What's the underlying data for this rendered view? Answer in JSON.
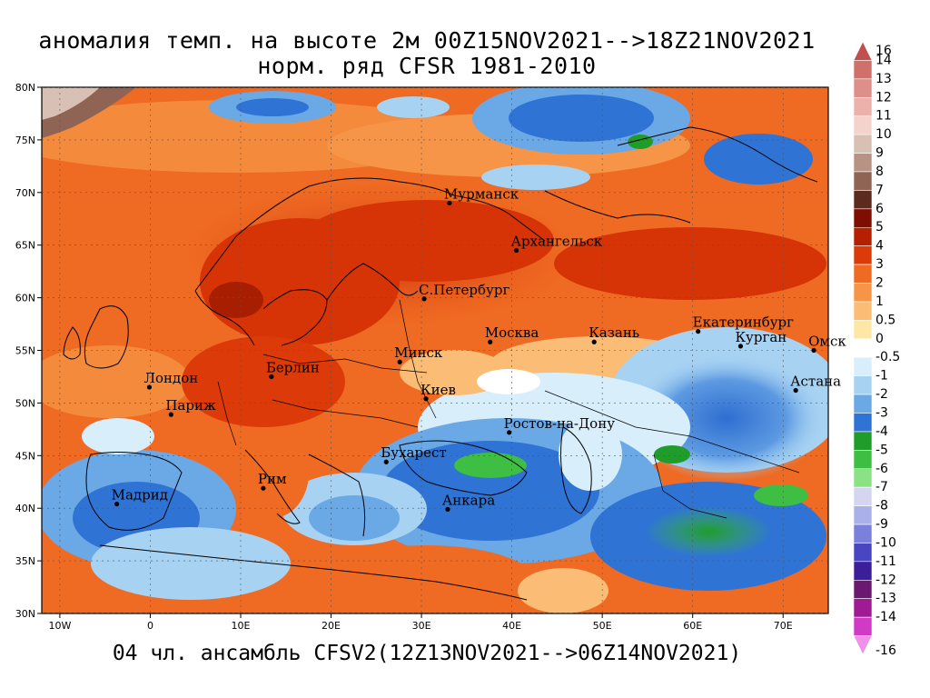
{
  "title_line1": "аномалия темп. на высоте 2м 00Z15NOV2021-->18Z21NOV2021",
  "title_line2": "норм. ряд CFSR 1981-2010",
  "footer": "04 чл. ансамбль CFSV2(12Z13NOV2021-->06Z14NOV2021)",
  "map": {
    "lon_range": [
      -12,
      75
    ],
    "lat_range": [
      30,
      80
    ],
    "lon_ticks": [
      {
        "value": -10,
        "label": "10W"
      },
      {
        "value": 0,
        "label": "0"
      },
      {
        "value": 10,
        "label": "10E"
      },
      {
        "value": 20,
        "label": "20E"
      },
      {
        "value": 30,
        "label": "30E"
      },
      {
        "value": 40,
        "label": "40E"
      },
      {
        "value": 50,
        "label": "50E"
      },
      {
        "value": 60,
        "label": "60E"
      },
      {
        "value": 70,
        "label": "70E"
      }
    ],
    "lat_ticks": [
      {
        "value": 30,
        "label": "30N"
      },
      {
        "value": 35,
        "label": "35N"
      },
      {
        "value": 40,
        "label": "40N"
      },
      {
        "value": 45,
        "label": "45N"
      },
      {
        "value": 50,
        "label": "50N"
      },
      {
        "value": 55,
        "label": "55N"
      },
      {
        "value": 60,
        "label": "60N"
      },
      {
        "value": 65,
        "label": "65N"
      },
      {
        "value": 70,
        "label": "70N"
      },
      {
        "value": 75,
        "label": "75N"
      },
      {
        "value": 80,
        "label": "80N"
      }
    ],
    "cities": [
      {
        "name": "Мурманск",
        "lon": 33.1,
        "lat": 69.0
      },
      {
        "name": "Архангельск",
        "lon": 40.5,
        "lat": 64.5
      },
      {
        "name": "С.Петербург",
        "lon": 30.3,
        "lat": 59.9
      },
      {
        "name": "Москва",
        "lon": 37.6,
        "lat": 55.8
      },
      {
        "name": "Казань",
        "lon": 49.1,
        "lat": 55.8
      },
      {
        "name": "Екатеринбург",
        "lon": 60.6,
        "lat": 56.8
      },
      {
        "name": "Курган",
        "lon": 65.3,
        "lat": 55.4
      },
      {
        "name": "Омск",
        "lon": 73.4,
        "lat": 55.0
      },
      {
        "name": "Минск",
        "lon": 27.6,
        "lat": 53.9
      },
      {
        "name": "Берлин",
        "lon": 13.4,
        "lat": 52.5
      },
      {
        "name": "Лондон",
        "lon": -0.1,
        "lat": 51.5
      },
      {
        "name": "Париж",
        "lon": 2.3,
        "lat": 48.9
      },
      {
        "name": "Киев",
        "lon": 30.5,
        "lat": 50.4
      },
      {
        "name": "Астана",
        "lon": 71.4,
        "lat": 51.2
      },
      {
        "name": "Ростов-на-Дону",
        "lon": 39.7,
        "lat": 47.2
      },
      {
        "name": "Бухарест",
        "lon": 26.1,
        "lat": 44.4
      },
      {
        "name": "Рим",
        "lon": 12.5,
        "lat": 41.9
      },
      {
        "name": "Мадрид",
        "lon": -3.7,
        "lat": 40.4
      },
      {
        "name": "Анкара",
        "lon": 32.9,
        "lat": 39.9
      }
    ]
  },
  "legend": {
    "items": [
      {
        "label": "16",
        "color": "#c0504d"
      },
      {
        "label": "14",
        "color": "#d0706b"
      },
      {
        "label": "13",
        "color": "#df8f8a"
      },
      {
        "label": "12",
        "color": "#ecb1ab"
      },
      {
        "label": "11",
        "color": "#f4d3cd"
      },
      {
        "label": "10",
        "color": "#d8c0b5"
      },
      {
        "label": "9",
        "color": "#b89282"
      },
      {
        "label": "8",
        "color": "#8f6455"
      },
      {
        "label": "7",
        "color": "#5c2a1e"
      },
      {
        "label": "6",
        "color": "#7d0e00"
      },
      {
        "label": "5",
        "color": "#b52000"
      },
      {
        "label": "4",
        "color": "#dc3a08"
      },
      {
        "label": "3",
        "color": "#ef6a22"
      },
      {
        "label": "2",
        "color": "#f69447"
      },
      {
        "label": "1",
        "color": "#fbbd75"
      },
      {
        "label": "0.5",
        "color": "#fee6a4"
      },
      {
        "label": "0",
        "color": "#ffffff"
      },
      {
        "label": "-0.5",
        "color": "#d8eefa"
      },
      {
        "label": "-1",
        "color": "#a7d2f2"
      },
      {
        "label": "-2",
        "color": "#6aa8e6"
      },
      {
        "label": "-3",
        "color": "#2f73d4"
      },
      {
        "label": "-4",
        "color": "#1f9c2a"
      },
      {
        "label": "-5",
        "color": "#3ebe42"
      },
      {
        "label": "-6",
        "color": "#8ae284"
      },
      {
        "label": "-7",
        "color": "#d4d6f0"
      },
      {
        "label": "-8",
        "color": "#aab0ea"
      },
      {
        "label": "-9",
        "color": "#7a80dc"
      },
      {
        "label": "-10",
        "color": "#4a46c2"
      },
      {
        "label": "-11",
        "color": "#3a1e9a"
      },
      {
        "label": "-12",
        "color": "#6a1870"
      },
      {
        "label": "-13",
        "color": "#a01a94"
      },
      {
        "label": "-14",
        "color": "#d03ac4"
      },
      {
        "label": "-16",
        "color": "#f090e6"
      }
    ]
  }
}
